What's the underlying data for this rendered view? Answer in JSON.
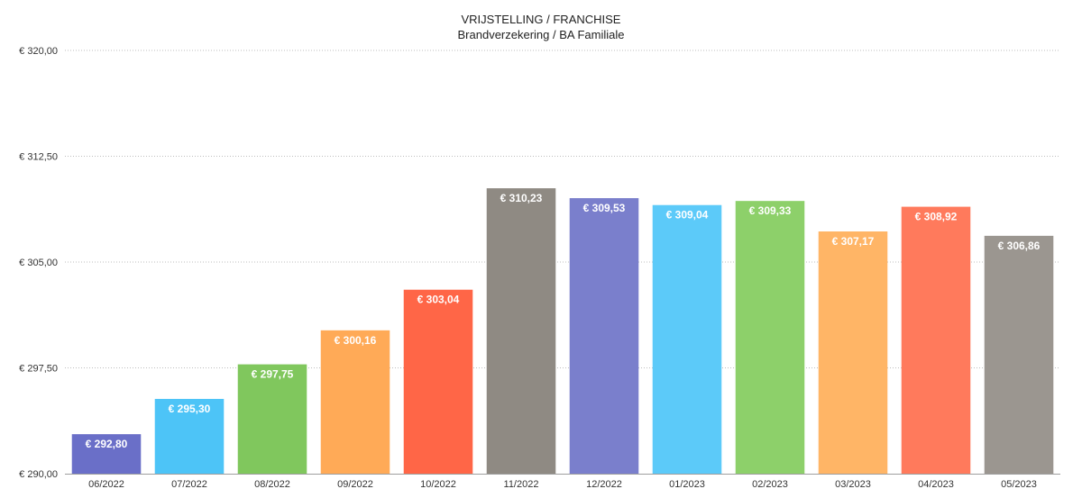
{
  "chart_data": {
    "type": "bar",
    "title": "VRIJSTELLING / FRANCHISE",
    "subtitle": "Brandverzekering / BA Familiale",
    "xlabel": "",
    "ylabel": "",
    "ylim": [
      290,
      320
    ],
    "yticks": [
      290,
      297.5,
      305,
      312.5,
      320
    ],
    "ytick_labels": [
      "€ 290,00",
      "€ 297,50",
      "€ 305,00",
      "€ 312,50",
      "€ 320,00"
    ],
    "grid": true,
    "legend": "none",
    "categories": [
      "06/2022",
      "07/2022",
      "08/2022",
      "09/2022",
      "10/2022",
      "11/2022",
      "12/2022",
      "01/2023",
      "02/2023",
      "03/2023",
      "04/2023",
      "05/2023"
    ],
    "values": [
      292.8,
      295.3,
      297.75,
      300.16,
      303.04,
      310.23,
      309.53,
      309.04,
      309.33,
      307.17,
      308.92,
      306.86
    ],
    "data_labels": [
      "€ 292,80",
      "€ 295,30",
      "€ 297,75",
      "€ 300,16",
      "€ 303,04",
      "€ 310,23",
      "€ 309,53",
      "€ 309,04",
      "€ 309,33",
      "€ 307,17",
      "€ 308,92",
      "€ 306,86"
    ],
    "colors": [
      "#6a6fc8",
      "#4dc4f7",
      "#80c75d",
      "#ffaa57",
      "#ff6647",
      "#8f8a83",
      "#7a7fcc",
      "#5ccaf9",
      "#8dd06a",
      "#ffb566",
      "#ff7a5c",
      "#9b9690"
    ]
  }
}
